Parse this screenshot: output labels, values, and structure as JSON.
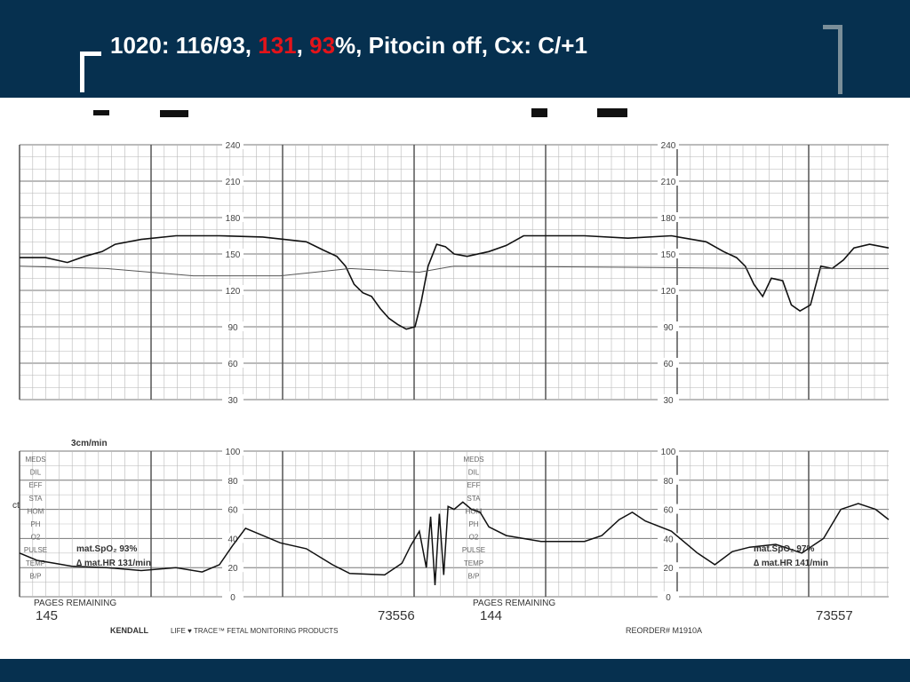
{
  "slide": {
    "title": {
      "part1": "1020: 116/93, ",
      "red1": "131",
      "sep": ", ",
      "red2": "93",
      "part2": "%, Pitocin off, Cx: C/+1"
    },
    "colors": {
      "header_bg": "#06304f",
      "title_text": "#ffffff",
      "accent_red": "#e3141a"
    }
  },
  "strip": {
    "paper_speed": "3cm/min",
    "side_labels": [
      "MEDS",
      "DIL",
      "EFF",
      "STA",
      "HOM",
      "PH",
      "O2",
      "PULSE",
      "TEMP",
      "B/P"
    ],
    "left_annotation": {
      "spo2": "mat.SpO₂  93%",
      "hr": "∆ mat.HR   131/min"
    },
    "right_annotation": {
      "spo2": "mat.SpO₂  97%",
      "hr": "∆ mat.HR  141/min"
    },
    "left_cut_text": "ct",
    "pages_label_left": "PAGES REMAINING",
    "pages_value_left": "145",
    "pages_label_right": "PAGES REMAINING",
    "pages_value_right": "144",
    "serial_left": "73556",
    "serial_right": "73557",
    "brand": "KENDALL",
    "product": "LIFE ♥ TRACE™ FETAL MONITORING PRODUCTS",
    "reorder": "REORDER# M1910A"
  },
  "chart_data": [
    {
      "type": "line",
      "name": "fetal-heart-rate",
      "y_ticks": [
        "240",
        "210",
        "180",
        "150",
        "120",
        "90",
        "60",
        "30"
      ],
      "ylim": [
        30,
        240
      ],
      "xlim": [
        0,
        1000
      ],
      "series": [
        {
          "points": [
            [
              0,
              147
            ],
            [
              30,
              147
            ],
            [
              55,
              143
            ],
            [
              75,
              148
            ],
            [
              95,
              152
            ],
            [
              110,
              158
            ],
            [
              140,
              162
            ],
            [
              180,
              165
            ],
            [
              230,
              165
            ],
            [
              280,
              164
            ],
            [
              330,
              160
            ],
            [
              350,
              153
            ],
            [
              365,
              148
            ],
            [
              375,
              140
            ],
            [
              385,
              125
            ],
            [
              395,
              118
            ],
            [
              405,
              115
            ],
            [
              415,
              105
            ],
            [
              425,
              97
            ],
            [
              435,
              92
            ],
            [
              445,
              88
            ],
            [
              455,
              90
            ],
            [
              462,
              110
            ],
            [
              470,
              140
            ],
            [
              480,
              158
            ],
            [
              490,
              156
            ],
            [
              500,
              150
            ],
            [
              515,
              148
            ],
            [
              540,
              152
            ],
            [
              560,
              157
            ],
            [
              580,
              165
            ],
            [
              610,
              165
            ],
            [
              650,
              165
            ],
            [
              700,
              163
            ],
            [
              750,
              165
            ],
            [
              790,
              160
            ],
            [
              810,
              152
            ],
            [
              825,
              147
            ],
            [
              835,
              140
            ],
            [
              845,
              125
            ],
            [
              855,
              115
            ],
            [
              865,
              130
            ],
            [
              878,
              128
            ],
            [
              888,
              108
            ],
            [
              898,
              103
            ],
            [
              910,
              108
            ],
            [
              922,
              140
            ],
            [
              935,
              138
            ],
            [
              948,
              145
            ],
            [
              960,
              155
            ],
            [
              978,
              158
            ],
            [
              1000,
              155
            ]
          ]
        },
        {
          "points": [
            [
              0,
              140
            ],
            [
              100,
              138
            ],
            [
              200,
              132
            ],
            [
              300,
              132
            ],
            [
              380,
              138
            ],
            [
              460,
              135
            ],
            [
              500,
              140
            ],
            [
              700,
              139
            ],
            [
              850,
              138
            ],
            [
              1000,
              138
            ]
          ]
        }
      ]
    },
    {
      "type": "line",
      "name": "uterine-activity",
      "y_ticks": [
        "100",
        "80",
        "60",
        "40",
        "20",
        "0"
      ],
      "ylim": [
        0,
        100
      ],
      "xlim": [
        0,
        1000
      ],
      "series": [
        {
          "points": [
            [
              0,
              30
            ],
            [
              20,
              25
            ],
            [
              40,
              23
            ],
            [
              60,
              21
            ],
            [
              100,
              20
            ],
            [
              140,
              18
            ],
            [
              180,
              20
            ],
            [
              210,
              17
            ],
            [
              230,
              22
            ],
            [
              245,
              35
            ],
            [
              260,
              47
            ],
            [
              280,
              42
            ],
            [
              300,
              37
            ],
            [
              330,
              33
            ],
            [
              360,
              22
            ],
            [
              380,
              16
            ],
            [
              420,
              15
            ],
            [
              440,
              23
            ],
            [
              450,
              35
            ],
            [
              460,
              45
            ],
            [
              468,
              20
            ],
            [
              473,
              55
            ],
            [
              478,
              8
            ],
            [
              483,
              57
            ],
            [
              488,
              15
            ],
            [
              493,
              62
            ],
            [
              500,
              60
            ],
            [
              510,
              65
            ],
            [
              520,
              60
            ],
            [
              530,
              58
            ],
            [
              540,
              48
            ],
            [
              560,
              42
            ],
            [
              600,
              38
            ],
            [
              650,
              38
            ],
            [
              670,
              42
            ],
            [
              690,
              53
            ],
            [
              705,
              58
            ],
            [
              720,
              52
            ],
            [
              750,
              45
            ],
            [
              780,
              30
            ],
            [
              800,
              22
            ],
            [
              820,
              31
            ],
            [
              840,
              34
            ],
            [
              870,
              36
            ],
            [
              900,
              30
            ],
            [
              925,
              40
            ],
            [
              945,
              60
            ],
            [
              965,
              64
            ],
            [
              985,
              60
            ],
            [
              1000,
              53
            ]
          ]
        }
      ]
    }
  ]
}
